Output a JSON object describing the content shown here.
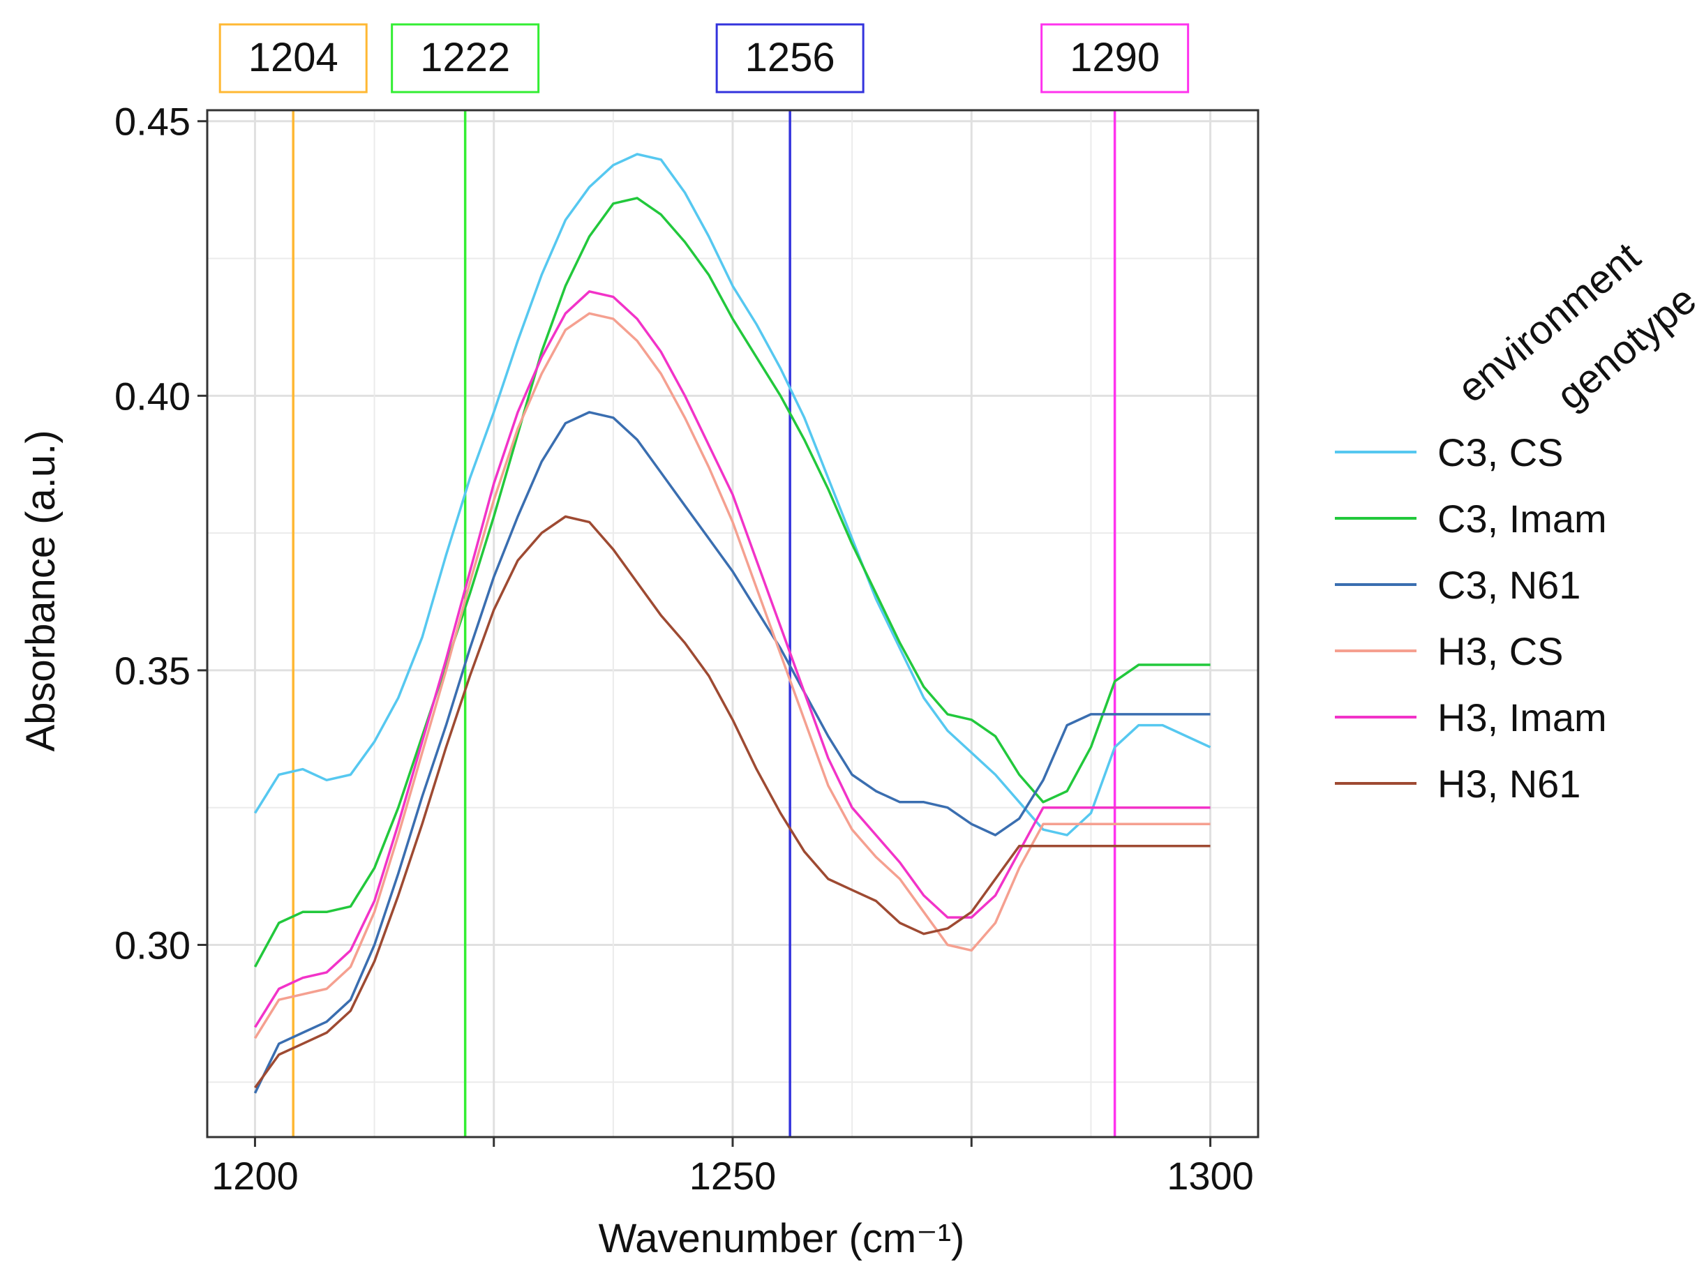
{
  "chart_data": {
    "type": "line",
    "title": "",
    "xlabel": "Wavenumber (cm⁻¹)",
    "ylabel": "Absorbance (a.u.)",
    "xlim": [
      1195,
      1305
    ],
    "ylim": [
      0.265,
      0.452
    ],
    "x_ticks": [
      1200,
      1250,
      1300
    ],
    "x_minor_ticks": [
      1225,
      1275
    ],
    "y_ticks": [
      0.3,
      0.35,
      0.4,
      0.45
    ],
    "y_tick_labels": [
      "0.30",
      "0.35",
      "0.40",
      "0.45"
    ],
    "legend": {
      "title_lines": [
        "environment",
        "genotype"
      ],
      "placement": "right"
    },
    "vertical_markers": [
      {
        "x": 1204,
        "label": "1204",
        "color": "#FFB833"
      },
      {
        "x": 1222,
        "label": "1222",
        "color": "#33EE33"
      },
      {
        "x": 1256,
        "label": "1256",
        "color": "#3333DD"
      },
      {
        "x": 1290,
        "label": "1290",
        "color": "#FF33EE"
      }
    ],
    "x": [
      1200,
      1202.5,
      1205,
      1207.5,
      1210,
      1212.5,
      1215,
      1217.5,
      1220,
      1222.5,
      1225,
      1227.5,
      1230,
      1232.5,
      1235,
      1237.5,
      1240,
      1242.5,
      1245,
      1247.5,
      1250,
      1252.5,
      1255,
      1257.5,
      1260,
      1262.5,
      1265,
      1267.5,
      1270,
      1272.5,
      1275,
      1277.5,
      1280,
      1282.5,
      1285,
      1287.5,
      1290,
      1292.5,
      1295,
      1297.5,
      1300
    ],
    "series": [
      {
        "name": "C3, CS",
        "color": "#56C8F0",
        "values": [
          0.324,
          0.331,
          0.332,
          0.33,
          0.331,
          0.337,
          0.345,
          0.356,
          0.371,
          0.385,
          0.397,
          0.41,
          0.422,
          0.432,
          0.438,
          0.442,
          0.444,
          0.443,
          0.437,
          0.429,
          0.42,
          0.413,
          0.405,
          0.396,
          0.385,
          0.374,
          0.363,
          0.354,
          0.345,
          0.339,
          0.335,
          0.331,
          0.326,
          0.321,
          0.32,
          0.324,
          0.336,
          0.34,
          0.34,
          0.338,
          0.336
        ]
      },
      {
        "name": "C3, Imam",
        "color": "#22C83C",
        "values": [
          0.296,
          0.304,
          0.306,
          0.306,
          0.307,
          0.314,
          0.325,
          0.338,
          0.351,
          0.364,
          0.378,
          0.393,
          0.408,
          0.42,
          0.429,
          0.435,
          0.436,
          0.433,
          0.428,
          0.422,
          0.414,
          0.407,
          0.4,
          0.392,
          0.383,
          0.373,
          0.364,
          0.355,
          0.347,
          0.342,
          0.341,
          0.338,
          0.331,
          0.326,
          0.328,
          0.336,
          0.348,
          0.351,
          0.351,
          0.351,
          0.351
        ]
      },
      {
        "name": "C3, N61",
        "color": "#3A6EB0",
        "values": [
          0.273,
          0.282,
          0.284,
          0.286,
          0.29,
          0.3,
          0.313,
          0.327,
          0.34,
          0.354,
          0.367,
          0.378,
          0.388,
          0.395,
          0.397,
          0.396,
          0.392,
          0.386,
          0.38,
          0.374,
          0.368,
          0.361,
          0.354,
          0.346,
          0.338,
          0.331,
          0.328,
          0.326,
          0.326,
          0.325,
          0.322,
          0.32,
          0.323,
          0.33,
          0.34,
          0.342,
          0.342,
          0.342,
          0.342,
          0.342,
          0.342
        ]
      },
      {
        "name": "H3, CS",
        "color": "#F5A090",
        "values": [
          0.283,
          0.29,
          0.291,
          0.292,
          0.296,
          0.306,
          0.32,
          0.335,
          0.35,
          0.366,
          0.381,
          0.394,
          0.404,
          0.412,
          0.415,
          0.414,
          0.41,
          0.404,
          0.396,
          0.387,
          0.377,
          0.365,
          0.353,
          0.341,
          0.329,
          0.321,
          0.316,
          0.312,
          0.306,
          0.3,
          0.299,
          0.304,
          0.314,
          0.322,
          0.322,
          0.322,
          0.322,
          0.322,
          0.322,
          0.322,
          0.322
        ]
      },
      {
        "name": "H3, Imam",
        "color": "#F233C8",
        "values": [
          0.285,
          0.292,
          0.294,
          0.295,
          0.299,
          0.308,
          0.322,
          0.337,
          0.352,
          0.368,
          0.384,
          0.397,
          0.407,
          0.415,
          0.419,
          0.418,
          0.414,
          0.408,
          0.4,
          0.391,
          0.382,
          0.37,
          0.358,
          0.346,
          0.334,
          0.325,
          0.32,
          0.315,
          0.309,
          0.305,
          0.305,
          0.309,
          0.317,
          0.325,
          0.325,
          0.325,
          0.325,
          0.325,
          0.325,
          0.325,
          0.325
        ]
      },
      {
        "name": "H3, N61",
        "color": "#9E4A32",
        "values": [
          0.274,
          0.28,
          0.282,
          0.284,
          0.288,
          0.297,
          0.309,
          0.322,
          0.336,
          0.349,
          0.361,
          0.37,
          0.375,
          0.378,
          0.377,
          0.372,
          0.366,
          0.36,
          0.355,
          0.349,
          0.341,
          0.332,
          0.324,
          0.317,
          0.312,
          0.31,
          0.308,
          0.304,
          0.302,
          0.303,
          0.306,
          0.312,
          0.318,
          0.318,
          0.318,
          0.318,
          0.318,
          0.318,
          0.318,
          0.318,
          0.318
        ]
      }
    ]
  }
}
